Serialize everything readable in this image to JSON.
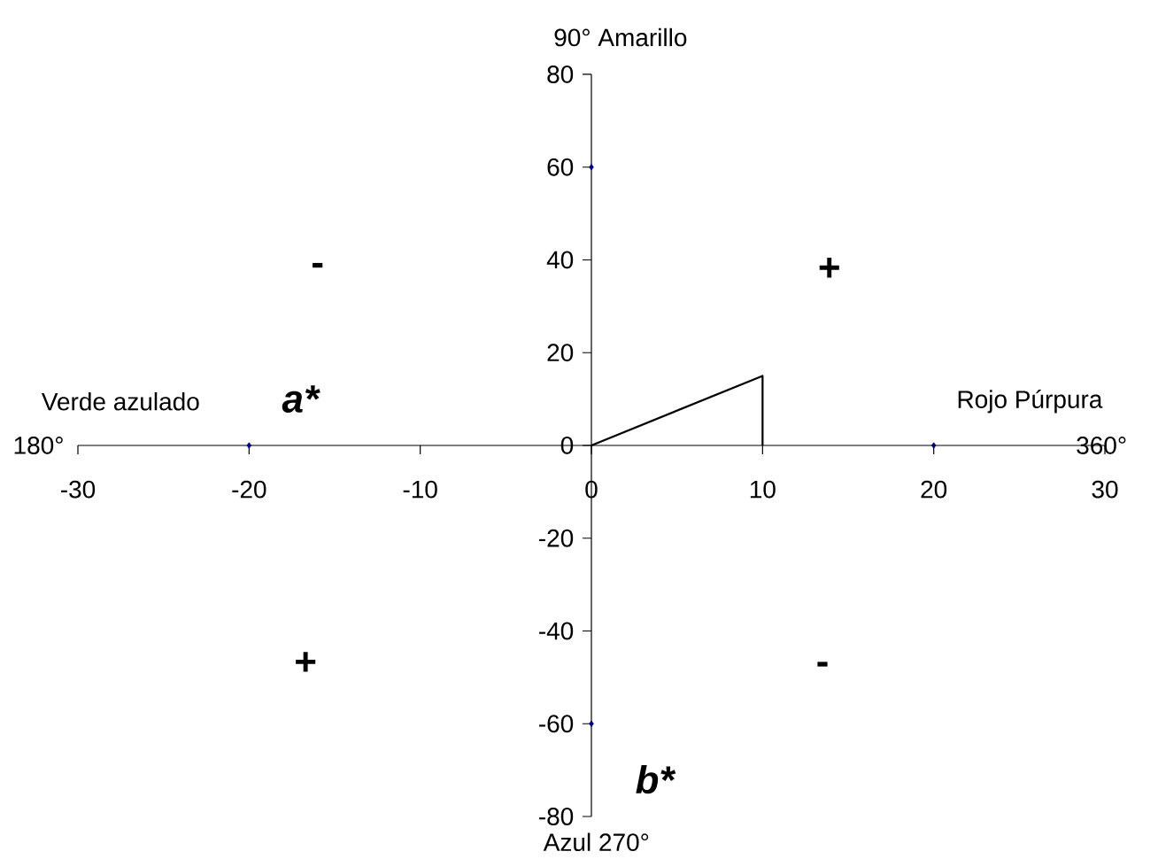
{
  "chart_data": {
    "type": "scatter",
    "xlim": [
      -30,
      30
    ],
    "ylim": [
      -80,
      80
    ],
    "xticks": [
      -30,
      -20,
      -10,
      0,
      10,
      20,
      30
    ],
    "yticks": [
      -80,
      -60,
      -40,
      -20,
      0,
      20,
      40,
      60,
      80
    ],
    "grid": false,
    "marker": "diamond",
    "series": [
      {
        "color": "#000080",
        "x": [
          0,
          -20,
          20,
          0
        ],
        "values": [
          60,
          0,
          0,
          -60
        ]
      },
      {
        "type": "line",
        "color": "#000000",
        "marker": "none",
        "line_style": "solid",
        "x": [
          0,
          10,
          10
        ],
        "values": [
          0,
          15,
          0
        ]
      }
    ],
    "annotations": [
      "90°  Amarillo",
      "Verde azulado",
      "a*",
      "180°",
      "Rojo Púrpura",
      "360°",
      "-",
      "+",
      "+",
      "-",
      "b*",
      "Azul  270°"
    ]
  }
}
